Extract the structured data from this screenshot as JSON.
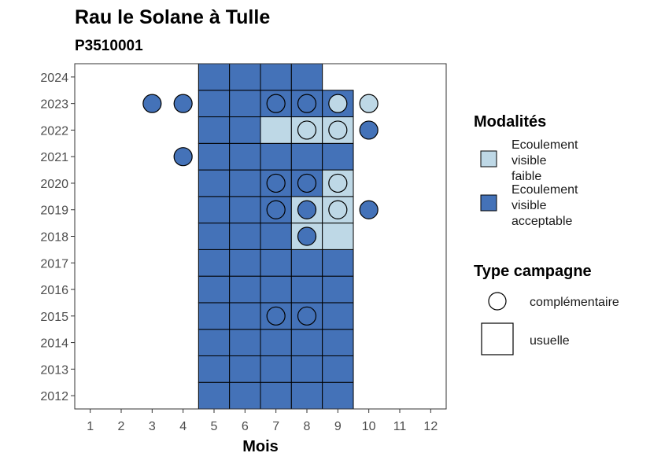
{
  "chart_data": {
    "type": "heatmap",
    "title": "Rau le Solane à Tulle",
    "subtitle": "P3510001",
    "xlabel": "Mois",
    "ylabel": "",
    "x_ticks": [
      "1",
      "2",
      "3",
      "4",
      "5",
      "6",
      "7",
      "8",
      "9",
      "10",
      "11",
      "12"
    ],
    "y_ticks": [
      "2012",
      "2013",
      "2014",
      "2015",
      "2016",
      "2017",
      "2018",
      "2019",
      "2020",
      "2021",
      "2022",
      "2023",
      "2024"
    ],
    "xlim": [
      0.5,
      12.5
    ],
    "ylim": [
      2011.5,
      2024.5
    ],
    "colors": {
      "faible": "#bed8e6",
      "acceptable": "#4472b8",
      "outline": "#000000",
      "panel_border": "#333333"
    },
    "legend": {
      "modalites_title": "Modalités",
      "modalites": [
        {
          "key": "faible",
          "lines": [
            "Ecoulement",
            "visible",
            "faible"
          ]
        },
        {
          "key": "acceptable",
          "lines": [
            "Ecoulement",
            "visible",
            "acceptable"
          ]
        }
      ],
      "type_title": "Type campagne",
      "types": [
        {
          "key": "complementaire",
          "label": "complémentaire"
        },
        {
          "key": "usuelle",
          "label": "usuelle"
        }
      ]
    },
    "usuelle": [
      {
        "year": 2012,
        "month": 5,
        "mod": "acceptable"
      },
      {
        "year": 2012,
        "month": 6,
        "mod": "acceptable"
      },
      {
        "year": 2012,
        "month": 7,
        "mod": "acceptable"
      },
      {
        "year": 2012,
        "month": 8,
        "mod": "acceptable"
      },
      {
        "year": 2012,
        "month": 9,
        "mod": "acceptable"
      },
      {
        "year": 2013,
        "month": 5,
        "mod": "acceptable"
      },
      {
        "year": 2013,
        "month": 6,
        "mod": "acceptable"
      },
      {
        "year": 2013,
        "month": 7,
        "mod": "acceptable"
      },
      {
        "year": 2013,
        "month": 8,
        "mod": "acceptable"
      },
      {
        "year": 2013,
        "month": 9,
        "mod": "acceptable"
      },
      {
        "year": 2014,
        "month": 5,
        "mod": "acceptable"
      },
      {
        "year": 2014,
        "month": 6,
        "mod": "acceptable"
      },
      {
        "year": 2014,
        "month": 7,
        "mod": "acceptable"
      },
      {
        "year": 2014,
        "month": 8,
        "mod": "acceptable"
      },
      {
        "year": 2014,
        "month": 9,
        "mod": "acceptable"
      },
      {
        "year": 2015,
        "month": 5,
        "mod": "acceptable"
      },
      {
        "year": 2015,
        "month": 6,
        "mod": "acceptable"
      },
      {
        "year": 2015,
        "month": 7,
        "mod": "acceptable"
      },
      {
        "year": 2015,
        "month": 8,
        "mod": "acceptable"
      },
      {
        "year": 2015,
        "month": 9,
        "mod": "acceptable"
      },
      {
        "year": 2016,
        "month": 5,
        "mod": "acceptable"
      },
      {
        "year": 2016,
        "month": 6,
        "mod": "acceptable"
      },
      {
        "year": 2016,
        "month": 7,
        "mod": "acceptable"
      },
      {
        "year": 2016,
        "month": 8,
        "mod": "acceptable"
      },
      {
        "year": 2016,
        "month": 9,
        "mod": "acceptable"
      },
      {
        "year": 2017,
        "month": 5,
        "mod": "acceptable"
      },
      {
        "year": 2017,
        "month": 6,
        "mod": "acceptable"
      },
      {
        "year": 2017,
        "month": 7,
        "mod": "acceptable"
      },
      {
        "year": 2017,
        "month": 8,
        "mod": "acceptable"
      },
      {
        "year": 2017,
        "month": 9,
        "mod": "acceptable"
      },
      {
        "year": 2018,
        "month": 5,
        "mod": "acceptable"
      },
      {
        "year": 2018,
        "month": 6,
        "mod": "acceptable"
      },
      {
        "year": 2018,
        "month": 7,
        "mod": "acceptable"
      },
      {
        "year": 2018,
        "month": 8,
        "mod": "faible"
      },
      {
        "year": 2018,
        "month": 9,
        "mod": "faible"
      },
      {
        "year": 2019,
        "month": 5,
        "mod": "acceptable"
      },
      {
        "year": 2019,
        "month": 6,
        "mod": "acceptable"
      },
      {
        "year": 2019,
        "month": 7,
        "mod": "acceptable"
      },
      {
        "year": 2019,
        "month": 8,
        "mod": "faible"
      },
      {
        "year": 2019,
        "month": 9,
        "mod": "faible"
      },
      {
        "year": 2020,
        "month": 5,
        "mod": "acceptable"
      },
      {
        "year": 2020,
        "month": 6,
        "mod": "acceptable"
      },
      {
        "year": 2020,
        "month": 7,
        "mod": "acceptable"
      },
      {
        "year": 2020,
        "month": 8,
        "mod": "acceptable"
      },
      {
        "year": 2020,
        "month": 9,
        "mod": "faible"
      },
      {
        "year": 2021,
        "month": 5,
        "mod": "acceptable"
      },
      {
        "year": 2021,
        "month": 6,
        "mod": "acceptable"
      },
      {
        "year": 2021,
        "month": 7,
        "mod": "acceptable"
      },
      {
        "year": 2021,
        "month": 8,
        "mod": "acceptable"
      },
      {
        "year": 2021,
        "month": 9,
        "mod": "acceptable"
      },
      {
        "year": 2022,
        "month": 5,
        "mod": "acceptable"
      },
      {
        "year": 2022,
        "month": 6,
        "mod": "acceptable"
      },
      {
        "year": 2022,
        "month": 7,
        "mod": "faible"
      },
      {
        "year": 2022,
        "month": 8,
        "mod": "faible"
      },
      {
        "year": 2022,
        "month": 9,
        "mod": "faible"
      },
      {
        "year": 2023,
        "month": 5,
        "mod": "acceptable"
      },
      {
        "year": 2023,
        "month": 6,
        "mod": "acceptable"
      },
      {
        "year": 2023,
        "month": 7,
        "mod": "acceptable"
      },
      {
        "year": 2023,
        "month": 8,
        "mod": "acceptable"
      },
      {
        "year": 2023,
        "month": 9,
        "mod": "acceptable"
      },
      {
        "year": 2024,
        "month": 5,
        "mod": "acceptable"
      },
      {
        "year": 2024,
        "month": 6,
        "mod": "acceptable"
      },
      {
        "year": 2024,
        "month": 7,
        "mod": "acceptable"
      },
      {
        "year": 2024,
        "month": 8,
        "mod": "acceptable"
      }
    ],
    "complementaire": [
      {
        "year": 2023,
        "month": 3,
        "mod": "acceptable"
      },
      {
        "year": 2023,
        "month": 4,
        "mod": "acceptable"
      },
      {
        "year": 2023,
        "month": 7,
        "mod": "acceptable"
      },
      {
        "year": 2023,
        "month": 8,
        "mod": "acceptable"
      },
      {
        "year": 2023,
        "month": 9,
        "mod": "faible"
      },
      {
        "year": 2023,
        "month": 10,
        "mod": "faible"
      },
      {
        "year": 2022,
        "month": 8,
        "mod": "faible"
      },
      {
        "year": 2022,
        "month": 9,
        "mod": "faible"
      },
      {
        "year": 2022,
        "month": 10,
        "mod": "acceptable"
      },
      {
        "year": 2021,
        "month": 4,
        "mod": "acceptable"
      },
      {
        "year": 2020,
        "month": 7,
        "mod": "acceptable"
      },
      {
        "year": 2020,
        "month": 8,
        "mod": "acceptable"
      },
      {
        "year": 2020,
        "month": 9,
        "mod": "faible"
      },
      {
        "year": 2019,
        "month": 7,
        "mod": "acceptable"
      },
      {
        "year": 2019,
        "month": 8,
        "mod": "acceptable"
      },
      {
        "year": 2019,
        "month": 9,
        "mod": "faible"
      },
      {
        "year": 2019,
        "month": 10,
        "mod": "acceptable"
      },
      {
        "year": 2018,
        "month": 8,
        "mod": "acceptable"
      },
      {
        "year": 2015,
        "month": 7,
        "mod": "acceptable"
      },
      {
        "year": 2015,
        "month": 8,
        "mod": "acceptable"
      }
    ]
  }
}
